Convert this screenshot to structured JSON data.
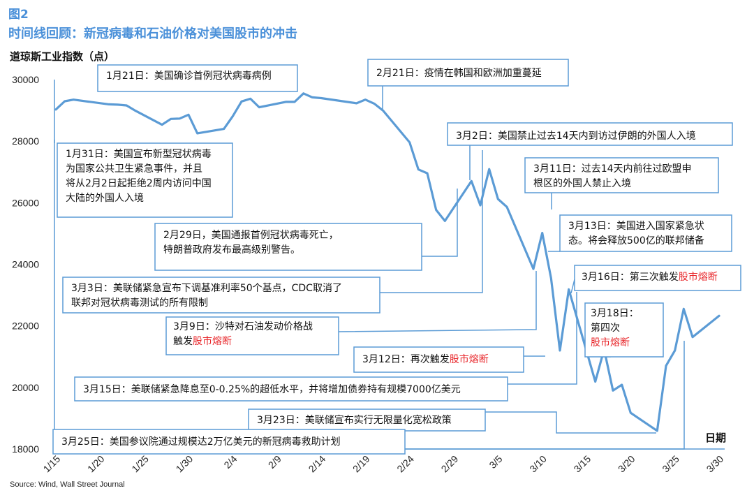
{
  "figure": {
    "label": "图2",
    "title": "时间线回顾：新冠病毒和石油价格对美国股市的冲击",
    "source": "Source: Wind, Wall Street Journal"
  },
  "colors": {
    "title": "#4a90d9",
    "line": "#5b9bd5",
    "box_border": "#5b9bd5",
    "highlight": "#e8262a"
  },
  "chart_data": {
    "type": "line",
    "ylabel": "道琼斯工业指数（点）",
    "xlabel": "日期",
    "ylim": [
      18000,
      30000
    ],
    "yticks": [
      18000,
      20000,
      22000,
      24000,
      26000,
      28000,
      30000
    ],
    "xtick_labels": [
      "1/15",
      "1/20",
      "1/25",
      "1/30",
      "2/4",
      "2/9",
      "2/14",
      "2/19",
      "2/24",
      "2/29",
      "3/5",
      "3/10",
      "3/15",
      "3/20",
      "3/25",
      "3/30"
    ],
    "series": [
      {
        "points": [
          [
            "1/15",
            29030
          ],
          [
            "1/16",
            29297
          ],
          [
            "1/17",
            29348
          ],
          [
            "1/21",
            29196
          ],
          [
            "1/22",
            29186
          ],
          [
            "1/23",
            29160
          ],
          [
            "1/24",
            28989
          ],
          [
            "1/27",
            28535
          ],
          [
            "1/28",
            28722
          ],
          [
            "1/29",
            28734
          ],
          [
            "1/30",
            28859
          ],
          [
            "1/31",
            28256
          ],
          [
            "2/3",
            28399
          ],
          [
            "2/4",
            28807
          ],
          [
            "2/5",
            29290
          ],
          [
            "2/6",
            29379
          ],
          [
            "2/7",
            29102
          ],
          [
            "2/10",
            29276
          ],
          [
            "2/11",
            29276
          ],
          [
            "2/12",
            29551
          ],
          [
            "2/13",
            29423
          ],
          [
            "2/14",
            29398
          ],
          [
            "2/18",
            29232
          ],
          [
            "2/19",
            29348
          ],
          [
            "2/20",
            29219
          ],
          [
            "2/21",
            28992
          ],
          [
            "2/24",
            27961
          ],
          [
            "2/25",
            27081
          ],
          [
            "2/26",
            26957
          ],
          [
            "2/27",
            25766
          ],
          [
            "2/28",
            25409
          ],
          [
            "3/2",
            26703
          ],
          [
            "3/3",
            25917
          ],
          [
            "3/4",
            27091
          ],
          [
            "3/5",
            26121
          ],
          [
            "3/6",
            25865
          ],
          [
            "3/9",
            23851
          ],
          [
            "3/10",
            25018
          ],
          [
            "3/11",
            23553
          ],
          [
            "3/12",
            21200
          ],
          [
            "3/13",
            23185
          ],
          [
            "3/16",
            20189
          ],
          [
            "3/17",
            21237
          ],
          [
            "3/18",
            19899
          ],
          [
            "3/19",
            20087
          ],
          [
            "3/20",
            19174
          ],
          [
            "3/23",
            18592
          ],
          [
            "3/24",
            20705
          ],
          [
            "3/25",
            21200
          ],
          [
            "3/26",
            22552
          ],
          [
            "3/27",
            21637
          ],
          [
            "3/30",
            22327
          ]
        ]
      }
    ],
    "annotations": [
      {
        "segments": [
          {
            "text": "1月21日：美国确诊首例冠状病毒病例"
          }
        ]
      },
      {
        "segments": [
          {
            "text": "2月21日：疫情在韩国和欧洲加重蔓延"
          }
        ]
      },
      {
        "segments": [
          {
            "text": "1月31日：美国宣布新型冠状病毒"
          },
          {
            "text": "为国家公共卫生紧急事件，并且"
          },
          {
            "text": "将从2月2日起拒绝2周内访问中国"
          },
          {
            "text": "大陆的外国人入境"
          }
        ]
      },
      {
        "segments": [
          {
            "text": "3月2日：美国禁止过去14天内到访过伊朗的外国人入境"
          }
        ]
      },
      {
        "segments": [
          {
            "text": "3月11日：过去14天内前往过欧盟申"
          },
          {
            "text": "根区的外国人禁止入境"
          }
        ]
      },
      {
        "segments": [
          {
            "text": "2月29日，美国通报首例冠状病毒死亡，"
          },
          {
            "text": "特朗普政府发布最高级别警告。"
          }
        ]
      },
      {
        "segments": [
          {
            "text": "3月13日：美国进入国家紧急状"
          },
          {
            "text": "态。将会释放500亿的联邦储备"
          }
        ]
      },
      {
        "segments": [
          {
            "text": "3月3日：美联储紧急宣布下调基准利率50个基点，CDC取消了"
          },
          {
            "text": "联邦对冠状病毒测试的所有限制"
          }
        ]
      },
      {
        "segments": [
          {
            "text": "3月16日：第三次触发"
          },
          {
            "text": "股市熔断",
            "red": true
          }
        ]
      },
      {
        "segments": [
          {
            "text": "3月18日："
          },
          {
            "text": "第四次"
          },
          {
            "text": "股市熔断",
            "red": true
          }
        ]
      },
      {
        "segments": [
          {
            "text": "3月9日：沙特对石油发动价格战"
          },
          {
            "text": "触发"
          },
          {
            "text": "股市熔断",
            "red": true
          }
        ]
      },
      {
        "segments": [
          {
            "text": "3月12日：再次触发"
          },
          {
            "text": "股市熔断",
            "red": true
          }
        ]
      },
      {
        "segments": [
          {
            "text": "3月15日：美联储紧急降息至0-0.25%的超低水平，并将增加债券持有规模7000亿美元"
          }
        ]
      },
      {
        "segments": [
          {
            "text": "3月23日：美联储宣布实行无限量化宽松政策"
          }
        ]
      },
      {
        "segments": [
          {
            "text": "3月25日：美国参议院通过规模达2万亿美元的新冠病毒救助计划"
          }
        ]
      }
    ]
  }
}
